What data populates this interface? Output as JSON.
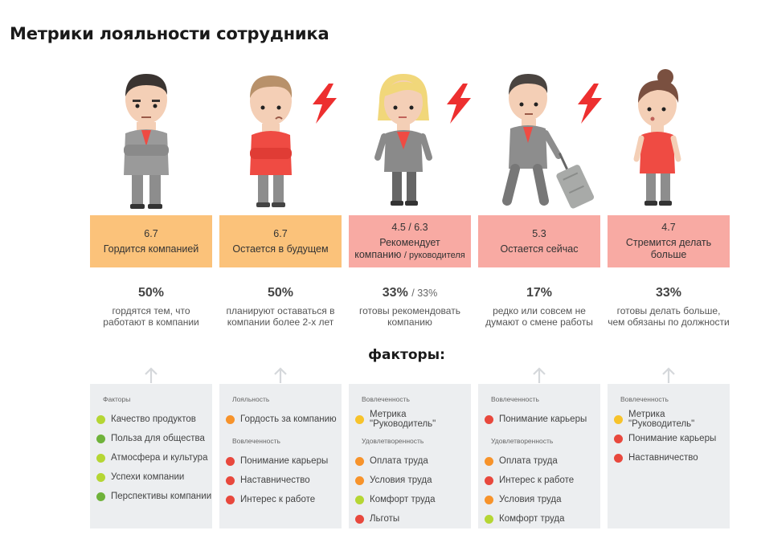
{
  "title": "Метрики лояльности сотрудника",
  "factors_heading": "факторы:",
  "colors": {
    "orange_box": "#fbc27a",
    "pink_box": "#f8aaa3",
    "panel_bg": "#eceef0",
    "bolt": "#ed2f2f",
    "dot_light_green": "#b5d634",
    "dot_dark_green": "#6fb23a",
    "dot_orange": "#f7932b",
    "dot_yellow": "#f7c32b",
    "dot_red": "#e8483d"
  },
  "columns": [
    {
      "has_bolt": false,
      "box_color": "orange",
      "score": "6.7",
      "label": "Гордится компанией",
      "label_small": "",
      "percent": "50%",
      "percent_extra": "",
      "description_line1": "гордятся тем, что",
      "description_line2": "работают в компании",
      "groups": [
        {
          "label": "Факторы",
          "items": [
            {
              "text": "Качество продуктов",
              "color": "light-green"
            },
            {
              "text": "Польза для общества",
              "color": "dark-green"
            },
            {
              "text": "Атмосфера и культура",
              "color": "light-green"
            },
            {
              "text": "Успехи компании",
              "color": "light-green"
            },
            {
              "text": "Перспективы компании",
              "color": "dark-green"
            }
          ]
        }
      ]
    },
    {
      "has_bolt": true,
      "box_color": "orange",
      "score": "6.7",
      "label": "Остается в будущем",
      "label_small": "",
      "percent": "50%",
      "percent_extra": "",
      "description_line1": "планируют оставаться в",
      "description_line2": "компании более 2-х лет",
      "groups": [
        {
          "label": "Лояльность",
          "items": [
            {
              "text": "Гордость за компанию",
              "color": "orange"
            }
          ]
        },
        {
          "label": "Вовлеченность",
          "items": [
            {
              "text": "Понимание карьеры",
              "color": "red"
            },
            {
              "text": "Наставничество",
              "color": "red"
            },
            {
              "text": "Интерес к работе",
              "color": "red"
            }
          ]
        }
      ]
    },
    {
      "has_bolt": true,
      "box_color": "pink",
      "score": "4.5 / 6.3",
      "label": "Рекомендует",
      "label_line2": "компанию",
      "label_small": "/ руководителя",
      "percent": "33%",
      "percent_extra": "/ 33%",
      "description_line1": "готовы рекомендовать",
      "description_line2": "компанию",
      "groups": [
        {
          "label": "Вовлеченность",
          "items": [
            {
              "text": "Метрика \"Руководитель\"",
              "color": "yellow"
            }
          ]
        },
        {
          "label": "Удовлетворенность",
          "items": [
            {
              "text": "Оплата труда",
              "color": "orange"
            },
            {
              "text": "Условия труда",
              "color": "orange"
            },
            {
              "text": "Комфорт труда",
              "color": "light-green"
            },
            {
              "text": "Льготы",
              "color": "red"
            }
          ]
        }
      ]
    },
    {
      "has_bolt": true,
      "box_color": "pink",
      "score": "5.3",
      "label": "Остается сейчас",
      "label_small": "",
      "percent": "17%",
      "percent_extra": "",
      "description_line1": "редко или совсем не",
      "description_line2": "думают о смене работы",
      "groups": [
        {
          "label": "Вовлеченность",
          "items": [
            {
              "text": "Понимание карьеры",
              "color": "red"
            }
          ]
        },
        {
          "label": "Удовлетворенность",
          "items": [
            {
              "text": "Оплата труда",
              "color": "orange"
            },
            {
              "text": "Интерес к работе",
              "color": "red"
            },
            {
              "text": "Условия труда",
              "color": "orange"
            },
            {
              "text": "Комфорт труда",
              "color": "light-green"
            }
          ]
        }
      ]
    },
    {
      "has_bolt": false,
      "box_color": "pink",
      "score": "4.7",
      "label": "Стремится делать",
      "label_line2": "больше",
      "label_small": "",
      "percent": "33%",
      "percent_extra": "",
      "description_line1": "готовы делать больше,",
      "description_line2": "чем обязаны по должности",
      "groups": [
        {
          "label": "Вовлеченность",
          "items": [
            {
              "text": "Метрика \"Руководитель\"",
              "color": "yellow"
            },
            {
              "text": "Понимание карьеры",
              "color": "red"
            },
            {
              "text": "Наставничество",
              "color": "red"
            }
          ]
        }
      ]
    }
  ]
}
